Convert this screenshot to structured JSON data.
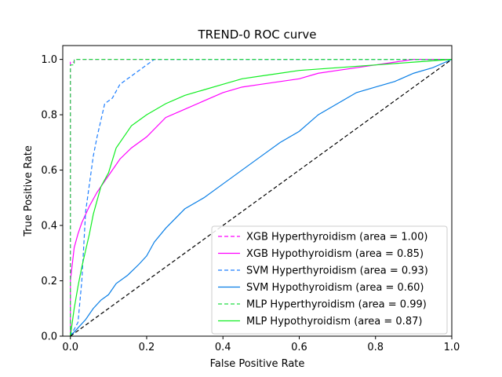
{
  "chart_data": {
    "type": "line",
    "title": "TREND-0 ROC curve",
    "xlabel": "False Positive Rate",
    "ylabel": "True Positive Rate",
    "xlim": [
      -0.02,
      1.0
    ],
    "ylim": [
      0.0,
      1.05
    ],
    "xticks": [
      "0.0",
      "0.2",
      "0.4",
      "0.6",
      "0.8",
      "1.0"
    ],
    "yticks": [
      "0.0",
      "0.2",
      "0.4",
      "0.6",
      "0.8",
      "1.0"
    ],
    "legend_position": "lower-right",
    "grid": false,
    "series": [
      {
        "name": "XGB Hyperthyroidism (area = 1.00)",
        "color": "#ff00ff",
        "dash": "dashed",
        "points": [
          [
            0,
            0
          ],
          [
            0,
            0.99
          ],
          [
            0.01,
            0.99
          ],
          [
            0.01,
            1.0
          ],
          [
            1,
            1
          ]
        ]
      },
      {
        "name": "XGB Hypothyroidism (area = 0.85)",
        "color": "#ff00ff",
        "dash": "solid",
        "points": [
          [
            0,
            0
          ],
          [
            0,
            0.2
          ],
          [
            0.01,
            0.32
          ],
          [
            0.02,
            0.37
          ],
          [
            0.03,
            0.41
          ],
          [
            0.05,
            0.47
          ],
          [
            0.07,
            0.52
          ],
          [
            0.1,
            0.58
          ],
          [
            0.13,
            0.64
          ],
          [
            0.16,
            0.68
          ],
          [
            0.2,
            0.72
          ],
          [
            0.25,
            0.79
          ],
          [
            0.3,
            0.82
          ],
          [
            0.35,
            0.85
          ],
          [
            0.4,
            0.88
          ],
          [
            0.45,
            0.9
          ],
          [
            0.5,
            0.91
          ],
          [
            0.55,
            0.92
          ],
          [
            0.6,
            0.93
          ],
          [
            0.65,
            0.95
          ],
          [
            0.7,
            0.96
          ],
          [
            0.75,
            0.97
          ],
          [
            0.8,
            0.98
          ],
          [
            0.85,
            0.99
          ],
          [
            0.9,
            1.0
          ],
          [
            1,
            1
          ]
        ]
      },
      {
        "name": "SVM Hyperthyroidism (area = 0.93)",
        "color": "#1f7fff",
        "dash": "dashed",
        "points": [
          [
            0,
            0
          ],
          [
            0.02,
            0.05
          ],
          [
            0.03,
            0.2
          ],
          [
            0.04,
            0.45
          ],
          [
            0.05,
            0.55
          ],
          [
            0.06,
            0.65
          ],
          [
            0.07,
            0.72
          ],
          [
            0.08,
            0.78
          ],
          [
            0.09,
            0.84
          ],
          [
            0.11,
            0.86
          ],
          [
            0.13,
            0.91
          ],
          [
            0.15,
            0.93
          ],
          [
            0.18,
            0.96
          ],
          [
            0.2,
            0.98
          ],
          [
            0.22,
            1.0
          ],
          [
            1,
            1
          ]
        ]
      },
      {
        "name": "SVM Hypothyroidism (area = 0.60)",
        "color": "#0a7fe6",
        "dash": "solid",
        "points": [
          [
            0,
            0
          ],
          [
            0.02,
            0.03
          ],
          [
            0.04,
            0.06
          ],
          [
            0.06,
            0.1
          ],
          [
            0.08,
            0.13
          ],
          [
            0.1,
            0.15
          ],
          [
            0.12,
            0.19
          ],
          [
            0.15,
            0.22
          ],
          [
            0.18,
            0.26
          ],
          [
            0.2,
            0.29
          ],
          [
            0.22,
            0.34
          ],
          [
            0.25,
            0.39
          ],
          [
            0.3,
            0.46
          ],
          [
            0.35,
            0.5
          ],
          [
            0.4,
            0.55
          ],
          [
            0.45,
            0.6
          ],
          [
            0.5,
            0.65
          ],
          [
            0.55,
            0.7
          ],
          [
            0.6,
            0.74
          ],
          [
            0.65,
            0.8
          ],
          [
            0.7,
            0.84
          ],
          [
            0.75,
            0.88
          ],
          [
            0.8,
            0.9
          ],
          [
            0.85,
            0.92
          ],
          [
            0.9,
            0.95
          ],
          [
            0.95,
            0.97
          ],
          [
            1,
            1
          ]
        ]
      },
      {
        "name": "MLP Hyperthyroidism (area = 0.99)",
        "color": "#22dd44",
        "dash": "dashed",
        "points": [
          [
            0,
            0
          ],
          [
            0,
            0.98
          ],
          [
            0.01,
            0.98
          ],
          [
            0.01,
            1.0
          ],
          [
            1,
            1
          ]
        ]
      },
      {
        "name": "MLP Hypothyroidism (area = 0.87)",
        "color": "#11ee22",
        "dash": "solid",
        "points": [
          [
            0,
            0
          ],
          [
            0.01,
            0.1
          ],
          [
            0.02,
            0.18
          ],
          [
            0.03,
            0.25
          ],
          [
            0.04,
            0.31
          ],
          [
            0.05,
            0.37
          ],
          [
            0.06,
            0.44
          ],
          [
            0.07,
            0.49
          ],
          [
            0.08,
            0.54
          ],
          [
            0.1,
            0.59
          ],
          [
            0.12,
            0.68
          ],
          [
            0.14,
            0.72
          ],
          [
            0.16,
            0.76
          ],
          [
            0.18,
            0.78
          ],
          [
            0.2,
            0.8
          ],
          [
            0.25,
            0.84
          ],
          [
            0.3,
            0.87
          ],
          [
            0.35,
            0.89
          ],
          [
            0.4,
            0.91
          ],
          [
            0.45,
            0.93
          ],
          [
            0.5,
            0.94
          ],
          [
            0.55,
            0.95
          ],
          [
            0.6,
            0.96
          ],
          [
            0.7,
            0.97
          ],
          [
            0.8,
            0.98
          ],
          [
            0.9,
            0.99
          ],
          [
            1,
            1
          ]
        ]
      },
      {
        "name": "",
        "color": "#000000",
        "dash": "dashed",
        "points": [
          [
            0,
            0
          ],
          [
            1,
            1
          ]
        ]
      }
    ]
  }
}
